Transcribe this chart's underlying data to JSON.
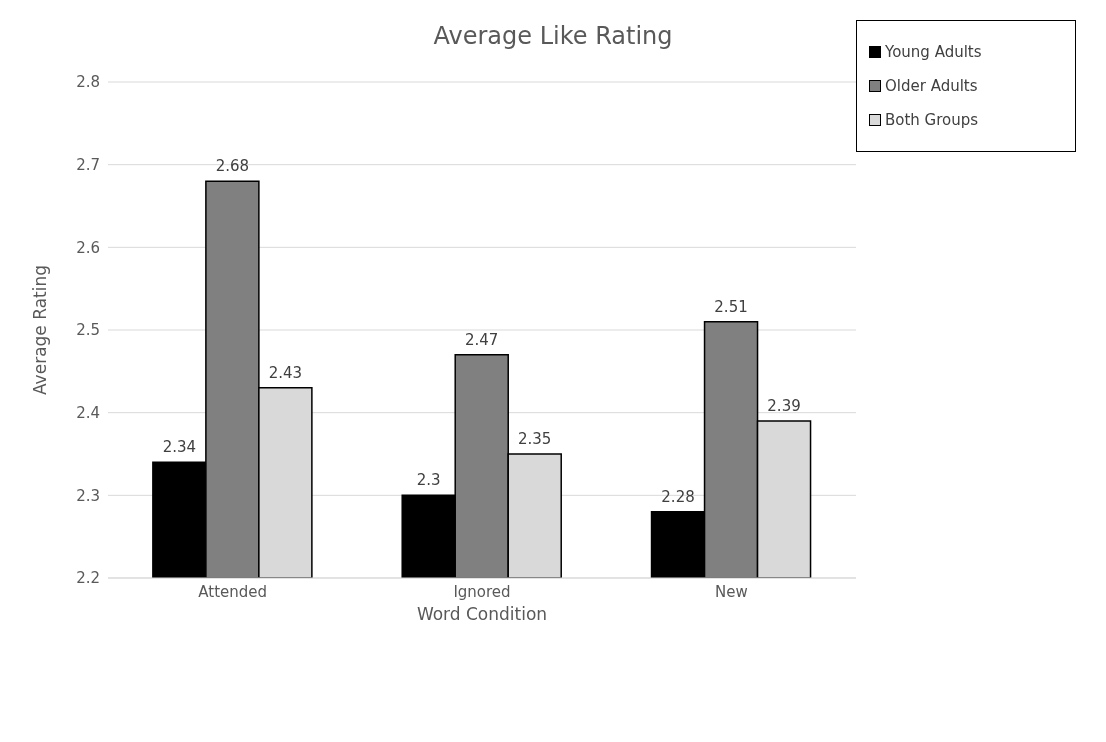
{
  "chart_data": {
    "type": "bar",
    "title": "Average Like Rating",
    "xlabel": "Word Condition",
    "ylabel": "Average Rating",
    "categories": [
      "Attended",
      "Ignored",
      "New"
    ],
    "series": [
      {
        "name": "Young Adults",
        "color": "#000000",
        "values": [
          2.34,
          2.3,
          2.28
        ]
      },
      {
        "name": "Older Adults",
        "color": "#808080",
        "values": [
          2.68,
          2.47,
          2.51
        ]
      },
      {
        "name": "Both Groups",
        "color": "#d9d9d9",
        "values": [
          2.43,
          2.35,
          2.39
        ]
      }
    ],
    "ylim": [
      2.2,
      2.8
    ],
    "yticks": [
      2.2,
      2.3,
      2.4,
      2.5,
      2.6,
      2.7,
      2.8
    ],
    "grid": "y",
    "legend": "top right",
    "data_labels": true
  }
}
